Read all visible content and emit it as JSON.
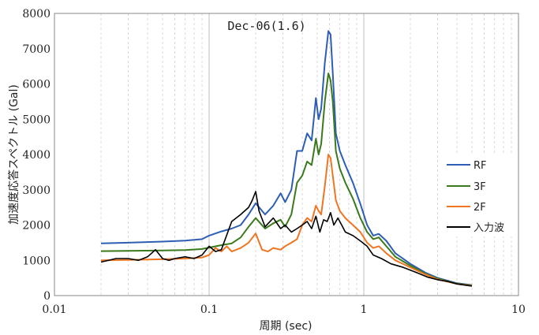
{
  "chart_data": {
    "type": "line",
    "title": "Dec-06(1.6)",
    "xlabel": "周期 (sec)",
    "ylabel": "加速度応答スペクトル (Gal)",
    "x_scale": "log",
    "xlim": [
      0.01,
      10
    ],
    "ylim": [
      0,
      8000
    ],
    "x_ticks": [
      0.01,
      0.1,
      1,
      10
    ],
    "x_tick_labels": [
      "0.01",
      "0.1",
      "1",
      "10"
    ],
    "y_ticks": [
      0,
      1000,
      2000,
      3000,
      4000,
      5000,
      6000,
      7000,
      8000
    ],
    "y_tick_labels": [
      "0",
      "1000",
      "2000",
      "3000",
      "4000",
      "5000",
      "6000",
      "7000",
      "8000"
    ],
    "grid": "vertical minor log lines",
    "legend_position": "right",
    "colors": {
      "RF": "#2e5eb4",
      "3F": "#3a7a1c",
      "2F": "#ee7622",
      "input": "#000000"
    },
    "series": [
      {
        "name": "RF",
        "x": [
          0.02,
          0.03,
          0.05,
          0.07,
          0.09,
          0.1,
          0.12,
          0.14,
          0.16,
          0.18,
          0.2,
          0.23,
          0.26,
          0.29,
          0.31,
          0.34,
          0.37,
          0.4,
          0.43,
          0.46,
          0.49,
          0.51,
          0.53,
          0.56,
          0.59,
          0.61,
          0.63,
          0.66,
          0.7,
          0.76,
          0.85,
          0.95,
          1.05,
          1.15,
          1.25,
          1.4,
          1.6,
          2,
          2.5,
          3,
          4,
          5
        ],
        "values": [
          1480,
          1500,
          1530,
          1560,
          1600,
          1700,
          1820,
          1900,
          2000,
          2300,
          2620,
          2300,
          2550,
          2900,
          2650,
          3000,
          4100,
          4100,
          4600,
          4400,
          5600,
          5000,
          5300,
          6600,
          7500,
          7400,
          6300,
          4600,
          4100,
          3700,
          3200,
          2600,
          2000,
          1700,
          1750,
          1550,
          1200,
          900,
          650,
          500,
          350,
          300
        ]
      },
      {
        "name": "3F",
        "x": [
          0.02,
          0.03,
          0.05,
          0.07,
          0.09,
          0.1,
          0.12,
          0.14,
          0.16,
          0.18,
          0.2,
          0.23,
          0.26,
          0.29,
          0.31,
          0.34,
          0.37,
          0.4,
          0.43,
          0.46,
          0.49,
          0.51,
          0.53,
          0.56,
          0.59,
          0.61,
          0.63,
          0.66,
          0.7,
          0.76,
          0.85,
          0.95,
          1.05,
          1.15,
          1.25,
          1.4,
          1.6,
          2,
          2.5,
          3,
          4,
          5
        ],
        "values": [
          1260,
          1270,
          1280,
          1290,
          1320,
          1360,
          1430,
          1480,
          1650,
          1950,
          2200,
          1900,
          2050,
          2150,
          1950,
          2300,
          3200,
          3400,
          3800,
          3700,
          4450,
          4000,
          4300,
          5500,
          6300,
          6100,
          5500,
          4100,
          3600,
          3200,
          2750,
          2200,
          1800,
          1600,
          1650,
          1400,
          1100,
          850,
          620,
          480,
          340,
          290
        ]
      },
      {
        "name": "2F",
        "x": [
          0.02,
          0.03,
          0.05,
          0.07,
          0.09,
          0.1,
          0.11,
          0.12,
          0.13,
          0.14,
          0.16,
          0.18,
          0.2,
          0.22,
          0.24,
          0.26,
          0.29,
          0.31,
          0.34,
          0.37,
          0.4,
          0.43,
          0.46,
          0.49,
          0.51,
          0.53,
          0.56,
          0.59,
          0.61,
          0.63,
          0.66,
          0.7,
          0.76,
          0.85,
          0.95,
          1.05,
          1.15,
          1.25,
          1.4,
          1.6,
          2,
          2.5,
          3,
          4,
          5
        ],
        "values": [
          1000,
          1010,
          1030,
          1050,
          1080,
          1150,
          1350,
          1250,
          1400,
          1250,
          1350,
          1500,
          1760,
          1300,
          1250,
          1350,
          1300,
          1400,
          1500,
          1600,
          2000,
          2200,
          2100,
          2550,
          2400,
          2300,
          3100,
          4000,
          3900,
          3400,
          2700,
          2400,
          2200,
          2000,
          1800,
          1500,
          1350,
          1400,
          1200,
          1000,
          800,
          600,
          460,
          330,
          280
        ]
      },
      {
        "name": "入力波",
        "x": [
          0.02,
          0.025,
          0.03,
          0.035,
          0.04,
          0.045,
          0.05,
          0.055,
          0.06,
          0.07,
          0.08,
          0.09,
          0.1,
          0.11,
          0.12,
          0.14,
          0.16,
          0.18,
          0.19,
          0.2,
          0.21,
          0.23,
          0.26,
          0.29,
          0.31,
          0.34,
          0.37,
          0.4,
          0.43,
          0.46,
          0.49,
          0.52,
          0.55,
          0.58,
          0.61,
          0.64,
          0.68,
          0.72,
          0.76,
          0.85,
          0.95,
          1.05,
          1.15,
          1.3,
          1.5,
          1.8,
          2.2,
          2.6,
          3,
          3.5,
          4,
          5
        ],
        "values": [
          950,
          1050,
          1050,
          1000,
          1100,
          1300,
          1050,
          1000,
          1050,
          1100,
          1050,
          1150,
          1400,
          1250,
          1300,
          2100,
          2300,
          2500,
          2700,
          2950,
          2400,
          1950,
          2200,
          1900,
          2000,
          1800,
          1900,
          2000,
          2100,
          1900,
          2250,
          1800,
          2150,
          2100,
          2350,
          2000,
          2200,
          2000,
          1800,
          1700,
          1550,
          1400,
          1150,
          1050,
          900,
          800,
          650,
          520,
          450,
          400,
          330,
          270
        ]
      }
    ]
  }
}
